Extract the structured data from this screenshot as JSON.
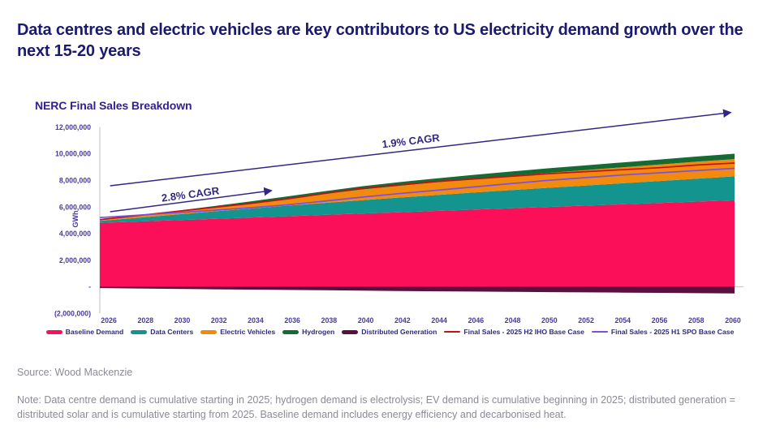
{
  "header": {
    "title": "Data centres and electric vehicles are key contributors to US electricity demand growth over the next 15-20 years"
  },
  "chart_data": {
    "type": "area",
    "title": "NERC Final Sales Breakdown",
    "xlabel": "",
    "ylabel": "GWh",
    "ylim": [
      -2000000,
      12000000
    ],
    "grid": false,
    "legend_position": "bottom",
    "y_tick_labels": [
      "12,000,000",
      "10,000,000",
      "8,000,000",
      "6,000,000",
      "4,000,000",
      "2,000,000",
      "-",
      "(2,000,000)"
    ],
    "y_tick_values": [
      12000000,
      10000000,
      8000000,
      6000000,
      4000000,
      2000000,
      0,
      -2000000
    ],
    "x": [
      2026,
      2028,
      2030,
      2032,
      2034,
      2036,
      2038,
      2040,
      2042,
      2044,
      2046,
      2048,
      2050,
      2052,
      2054,
      2056,
      2058,
      2060
    ],
    "series": [
      {
        "name": "Baseline Demand",
        "type": "stacked-area",
        "color": "#fa0f58",
        "values": [
          4800000,
          4900000,
          5000000,
          5100000,
          5200000,
          5300000,
          5400000,
          5500000,
          5600000,
          5700000,
          5800000,
          5900000,
          6000000,
          6100000,
          6200000,
          6300000,
          6400000,
          6500000
        ]
      },
      {
        "name": "Data Centers",
        "type": "stacked-area",
        "color": "#13948e",
        "values": [
          150000,
          280000,
          420000,
          550000,
          670000,
          790000,
          900000,
          1000000,
          1100000,
          1190000,
          1280000,
          1360000,
          1440000,
          1510000,
          1580000,
          1650000,
          1730000,
          1800000
        ]
      },
      {
        "name": "Electric Vehicles",
        "type": "stacked-area",
        "color": "#f28a0e",
        "values": [
          50000,
          120000,
          200000,
          300000,
          400000,
          520000,
          660000,
          800000,
          880000,
          950000,
          1010000,
          1070000,
          1120000,
          1160000,
          1200000,
          1240000,
          1270000,
          1300000
        ]
      },
      {
        "name": "Hydrogen",
        "type": "stacked-area",
        "color": "#156b33",
        "values": [
          10000,
          30000,
          60000,
          90000,
          130000,
          170000,
          210000,
          250000,
          280000,
          300000,
          320000,
          330000,
          345000,
          355000,
          365000,
          375000,
          390000,
          400000
        ]
      },
      {
        "name": "Distributed Generation",
        "type": "negative-area",
        "color": "#5b0f3e",
        "values": [
          -100000,
          -130000,
          -160000,
          -190000,
          -215000,
          -240000,
          -265000,
          -290000,
          -315000,
          -340000,
          -360000,
          -380000,
          -400000,
          -420000,
          -440000,
          -460000,
          -480000,
          -500000
        ]
      },
      {
        "name": "Final Sales - 2025 H2 IHO Base Case",
        "type": "line",
        "color": "#c41111",
        "values": [
          5050000,
          5350000,
          5650000,
          5950000,
          6250000,
          6600000,
          7000000,
          7400000,
          7650000,
          7900000,
          8100000,
          8300000,
          8500000,
          8650000,
          8800000,
          8950000,
          9150000,
          9300000
        ]
      },
      {
        "name": "Final Sales - 2025 H1 SPO Base Case",
        "type": "line",
        "color": "#7c4fe4",
        "values": [
          5200000,
          5380000,
          5560000,
          5740000,
          5930000,
          6150000,
          6430000,
          6730000,
          7000000,
          7250000,
          7500000,
          7750000,
          8000000,
          8200000,
          8400000,
          8570000,
          8740000,
          8900000
        ]
      }
    ],
    "annotations": [
      {
        "label": "2.8% CAGR",
        "x1": 2026.55,
        "y1": 5640000,
        "x2": 2035.2,
        "y2": 7230000,
        "label_t": 0.5,
        "label_gap": 4
      },
      {
        "label": "1.9% CAGR",
        "x1": 2026.55,
        "y1": 7590000,
        "x2": 2059.8,
        "y2": 13100000,
        "label_t": 0.485,
        "label_gap": 7
      }
    ]
  },
  "footer": {
    "source": "Source: Wood Mackenzie",
    "note": "Note: Data centre demand is cumulative starting in 2025; hydrogen demand is electrolysis; EV demand is cumulative beginning in 2025; distributed generation = distributed solar and is cumulative starting from 2025. Baseline demand includes energy efficiency and decarbonised heat."
  },
  "colors": {
    "title_navy": "#1a1a6e",
    "chart_title_purple": "#34208c",
    "annotation_navy": "#312884",
    "tick_label_purple": "#473b99",
    "axis_gray": "#c9c9d0",
    "footer_gray": "#8b8b95"
  }
}
